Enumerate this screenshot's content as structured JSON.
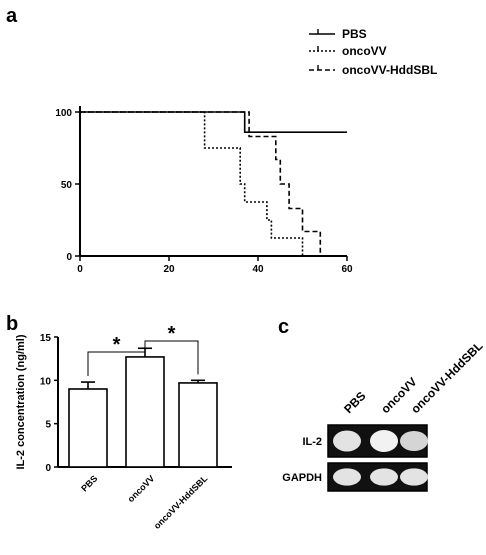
{
  "panels": {
    "a": "a",
    "b": "b",
    "c": "c"
  },
  "chart_data": [
    {
      "type": "line",
      "subtype": "step",
      "panel": "a",
      "xlim": [
        0,
        60
      ],
      "ylim": [
        0,
        100
      ],
      "x_ticks": [
        "0",
        "20",
        "40",
        "60"
      ],
      "y_ticks": [
        "0",
        "50",
        "100"
      ],
      "legend_position": "top-right",
      "series": [
        {
          "name": "PBS",
          "line": "solid",
          "x": [
            0,
            37,
            37,
            60
          ],
          "y": [
            100,
            100,
            86,
            86
          ]
        },
        {
          "name": "oncoVV",
          "line": "dotted",
          "x": [
            0,
            28,
            28,
            36,
            36,
            37,
            37,
            42,
            42,
            43,
            43,
            50,
            50
          ],
          "y": [
            100,
            100,
            75,
            75,
            50,
            50,
            37.5,
            37.5,
            25,
            25,
            12.5,
            12.5,
            0
          ]
        },
        {
          "name": "oncoVV-HddSBL",
          "line": "dashed",
          "x": [
            0,
            38,
            38,
            44,
            44,
            45,
            45,
            47,
            47,
            50,
            50,
            54,
            54,
            57,
            57
          ],
          "y": [
            100,
            100,
            83,
            83,
            67,
            67,
            50,
            50,
            33,
            33,
            17,
            17,
            0,
            0,
            0
          ]
        }
      ]
    },
    {
      "type": "bar",
      "panel": "b",
      "ylabel": "IL-2 concentration (ng/ml)",
      "ylim": [
        0,
        15
      ],
      "y_ticks": [
        "0",
        "5",
        "10",
        "15"
      ],
      "categories": [
        "PBS",
        "oncoVV",
        "oncoVV-HddSBL"
      ],
      "values": [
        9.0,
        12.7,
        9.7
      ],
      "errors": [
        0.8,
        1.0,
        0.3
      ],
      "significance": [
        {
          "pair": [
            "PBS",
            "oncoVV"
          ],
          "label": "*"
        },
        {
          "pair": [
            "oncoVV",
            "oncoVV-HddSBL"
          ],
          "label": "*"
        }
      ]
    }
  ],
  "gel": {
    "lanes": [
      "PBS",
      "oncoVV",
      "oncoVV-HddSBL"
    ],
    "rows": [
      {
        "label": "IL-2",
        "intensity": [
          0.85,
          1.0,
          0.7
        ]
      },
      {
        "label": "GAPDH",
        "intensity": [
          0.85,
          0.85,
          0.85
        ]
      }
    ]
  }
}
